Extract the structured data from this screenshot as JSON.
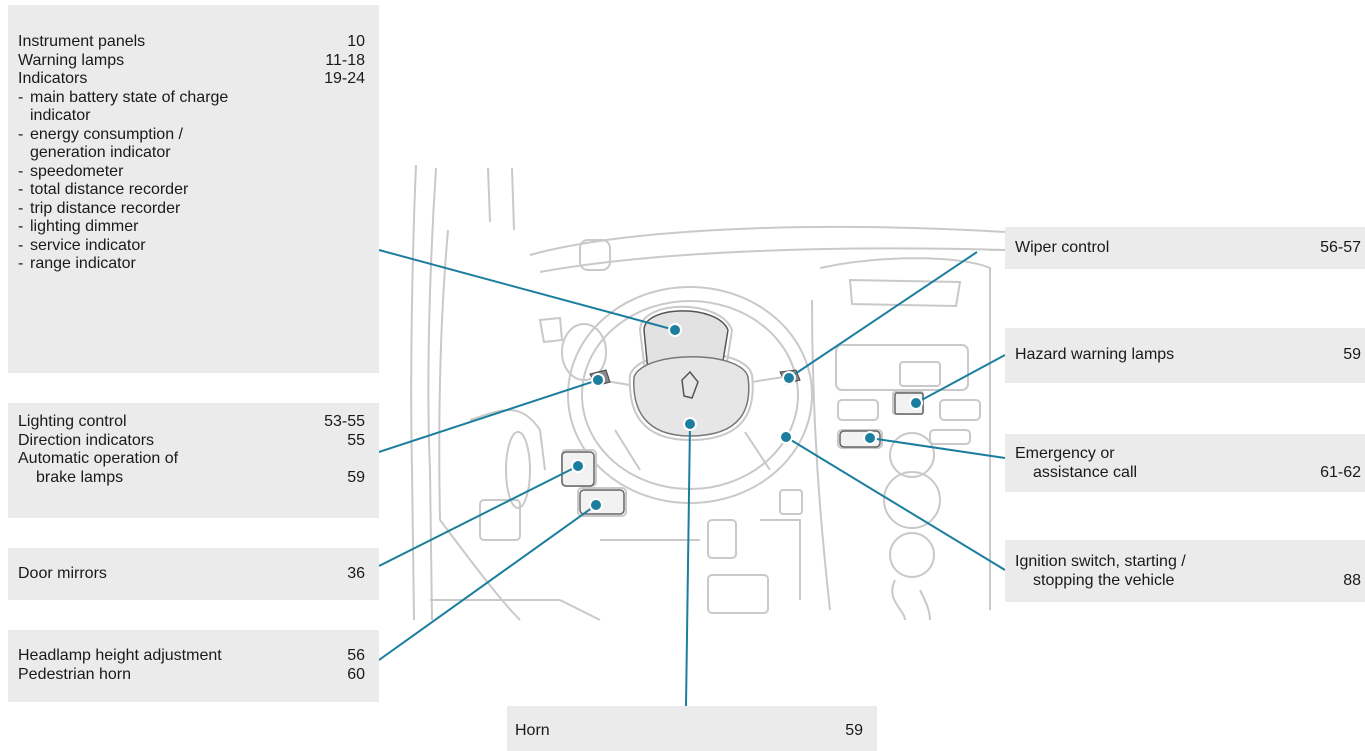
{
  "callouts": {
    "instrument_panels": {
      "items": [
        {
          "label": "Instrument panels",
          "page": "10"
        },
        {
          "label": "Warning lamps",
          "page": "11-18"
        },
        {
          "label": "Indicators",
          "page": "19-24"
        }
      ],
      "sub_items": [
        [
          "main battery state of charge",
          "indicator"
        ],
        [
          "energy consumption /",
          "generation indicator"
        ],
        [
          "speedometer"
        ],
        [
          "total distance recorder"
        ],
        [
          "trip distance recorder"
        ],
        [
          "lighting dimmer"
        ],
        [
          "service indicator"
        ],
        [
          "range indicator"
        ]
      ]
    },
    "lighting": {
      "items": [
        {
          "label": "Lighting control",
          "page": "53-55"
        },
        {
          "label": "Direction indicators",
          "page": "55"
        }
      ],
      "brake_line1": "Automatic operation of",
      "brake_line2": "brake lamps",
      "brake_page": "59"
    },
    "door_mirrors": {
      "label": "Door mirrors",
      "page": "36"
    },
    "headlamp": {
      "items": [
        {
          "label": "Headlamp height adjustment",
          "page": "56"
        },
        {
          "label": "Pedestrian horn",
          "page": "60"
        }
      ]
    },
    "horn": {
      "label": "Horn",
      "page": "59"
    },
    "wiper": {
      "label": "Wiper control",
      "page": "56-57"
    },
    "hazard": {
      "label": "Hazard warning lamps",
      "page": "59"
    },
    "emergency": {
      "line1": "Emergency or",
      "line2": "assistance call",
      "page": "61-62"
    },
    "ignition": {
      "line1": "Ignition switch, starting /",
      "line2": "stopping the vehicle",
      "page": "88"
    }
  },
  "colors": {
    "accent": "#1b7e9e",
    "box_bg": "#ebebeb",
    "drawing": "#c9c9c9"
  },
  "icons": {
    "badge": "peugeot-lion-icon"
  }
}
